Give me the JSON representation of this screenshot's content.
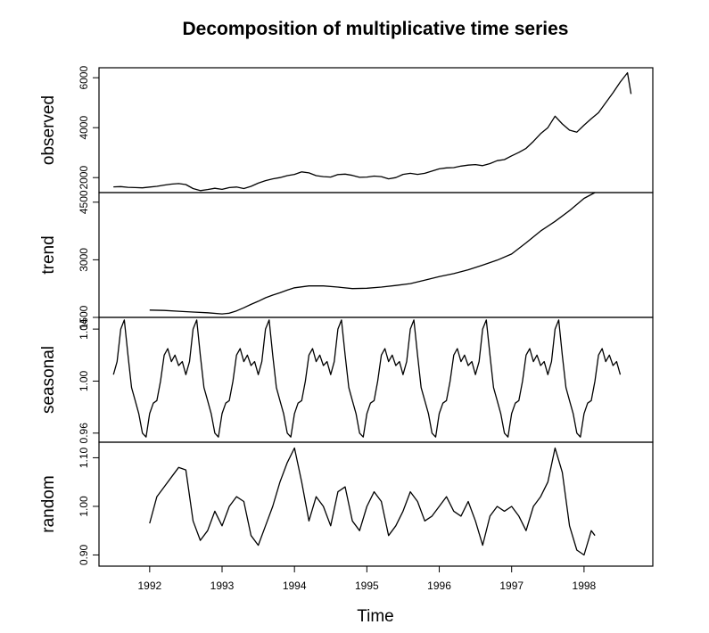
{
  "chart_data": {
    "type": "line",
    "title": "Decomposition of multiplicative time series",
    "xlabel": "Time",
    "xlim": [
      1991.3,
      1998.95
    ],
    "x_ticks": [
      "1992",
      "1993",
      "1994",
      "1995",
      "1996",
      "1997",
      "1998"
    ],
    "grid": false,
    "panels": [
      {
        "name": "observed",
        "ylabel": "observed",
        "ylim": [
          1400,
          6400
        ],
        "y_ticks": [
          "2000",
          "4000",
          "6000"
        ],
        "series": {
          "x": [
            1991.5,
            1991.6,
            1991.7,
            1991.8,
            1991.9,
            1992.0,
            1992.1,
            1992.2,
            1992.3,
            1992.4,
            1992.5,
            1992.6,
            1992.7,
            1992.8,
            1992.9,
            1993.0,
            1993.1,
            1993.2,
            1993.3,
            1993.4,
            1993.5,
            1993.6,
            1993.7,
            1993.8,
            1993.9,
            1994.0,
            1994.1,
            1994.2,
            1994.3,
            1994.4,
            1994.5,
            1994.6,
            1994.7,
            1994.8,
            1994.9,
            1995.0,
            1995.1,
            1995.2,
            1995.3,
            1995.4,
            1995.5,
            1995.6,
            1995.7,
            1995.8,
            1995.9,
            1996.0,
            1996.1,
            1996.2,
            1996.3,
            1996.4,
            1996.5,
            1996.6,
            1996.7,
            1996.8,
            1996.9,
            1997.0,
            1997.1,
            1997.2,
            1997.3,
            1997.4,
            1997.5,
            1997.6,
            1997.7,
            1997.8,
            1997.9,
            1998.0,
            1998.1,
            1998.2,
            1998.3,
            1998.4,
            1998.5,
            1998.6,
            1998.65
          ],
          "y": [
            1630,
            1640,
            1610,
            1600,
            1590,
            1620,
            1650,
            1700,
            1740,
            1760,
            1720,
            1560,
            1480,
            1520,
            1570,
            1530,
            1600,
            1620,
            1560,
            1650,
            1780,
            1880,
            1950,
            2000,
            2080,
            2130,
            2230,
            2190,
            2080,
            2040,
            2020,
            2120,
            2140,
            2090,
            2010,
            2020,
            2060,
            2040,
            1950,
            2000,
            2130,
            2170,
            2130,
            2170,
            2260,
            2350,
            2390,
            2400,
            2460,
            2500,
            2520,
            2480,
            2560,
            2680,
            2720,
            2870,
            3010,
            3170,
            3450,
            3760,
            4000,
            4460,
            4150,
            3900,
            3820,
            4100,
            4360,
            4600,
            5000,
            5400,
            5830,
            6200,
            5350
          ]
        }
      },
      {
        "name": "trend",
        "ylabel": "trend",
        "ylim": [
          1500,
          4750
        ],
        "y_ticks": [
          "1500",
          "3000",
          "4500"
        ],
        "series": {
          "x": [
            1992.0,
            1992.2,
            1992.4,
            1992.6,
            1992.8,
            1993.0,
            1993.1,
            1993.2,
            1993.3,
            1993.4,
            1993.5,
            1993.6,
            1993.7,
            1993.8,
            1993.9,
            1994.0,
            1994.2,
            1994.4,
            1994.6,
            1994.8,
            1995.0,
            1995.2,
            1995.4,
            1995.6,
            1995.8,
            1996.0,
            1996.2,
            1996.4,
            1996.6,
            1996.8,
            1997.0,
            1997.2,
            1997.4,
            1997.6,
            1997.8,
            1998.0,
            1998.15
          ],
          "y": [
            1690,
            1680,
            1660,
            1640,
            1620,
            1590,
            1610,
            1670,
            1750,
            1840,
            1920,
            2010,
            2080,
            2140,
            2210,
            2270,
            2320,
            2320,
            2290,
            2250,
            2260,
            2290,
            2330,
            2380,
            2470,
            2560,
            2640,
            2740,
            2860,
            2990,
            3150,
            3440,
            3750,
            4000,
            4280,
            4600,
            4750
          ]
        }
      },
      {
        "name": "seasonal",
        "ylabel": "seasonal",
        "ylim": [
          0.953,
          1.049
        ],
        "y_ticks": [
          "0.96",
          "1.00",
          "1.04"
        ],
        "series": {
          "x": [
            1991.5,
            1991.55,
            1991.6,
            1991.65,
            1991.7,
            1991.75,
            1991.8,
            1991.85,
            1991.9,
            1991.95,
            1992.0,
            1992.05,
            1992.1,
            1992.15,
            1992.2,
            1992.25,
            1992.3,
            1992.35,
            1992.4,
            1992.45,
            1992.5
          ],
          "y": [
            1.005,
            1.015,
            1.04,
            1.047,
            1.02,
            0.995,
            0.985,
            0.975,
            0.96,
            0.957,
            0.975,
            0.983,
            0.985,
            1.0,
            1.02,
            1.025,
            1.015,
            1.02,
            1.012,
            1.015,
            1.005
          ],
          "period": 1.0
        }
      },
      {
        "name": "random",
        "ylabel": "random",
        "ylim": [
          0.877,
          1.132
        ],
        "y_ticks": [
          "0.90",
          "1.00",
          "1.10"
        ],
        "series": {
          "x": [
            1992.0,
            1992.1,
            1992.2,
            1992.3,
            1992.4,
            1992.5,
            1992.6,
            1992.7,
            1992.8,
            1992.9,
            1993.0,
            1993.1,
            1993.2,
            1993.3,
            1993.4,
            1993.5,
            1993.6,
            1993.7,
            1993.8,
            1993.9,
            1994.0,
            1994.1,
            1994.2,
            1994.3,
            1994.4,
            1994.5,
            1994.6,
            1994.7,
            1994.8,
            1994.9,
            1995.0,
            1995.1,
            1995.2,
            1995.3,
            1995.4,
            1995.5,
            1995.6,
            1995.7,
            1995.8,
            1995.9,
            1996.0,
            1996.1,
            1996.2,
            1996.3,
            1996.4,
            1996.5,
            1996.6,
            1996.7,
            1996.8,
            1996.9,
            1997.0,
            1997.1,
            1997.2,
            1997.3,
            1997.4,
            1997.5,
            1997.6,
            1997.7,
            1997.8,
            1997.9,
            1998.0,
            1998.1,
            1998.15
          ],
          "y": [
            0.965,
            1.02,
            1.04,
            1.06,
            1.08,
            1.075,
            0.97,
            0.93,
            0.95,
            0.99,
            0.96,
            1.0,
            1.02,
            1.01,
            0.94,
            0.92,
            0.96,
            1.0,
            1.05,
            1.09,
            1.12,
            1.05,
            0.97,
            1.02,
            1.0,
            0.96,
            1.03,
            1.04,
            0.97,
            0.95,
            1.0,
            1.03,
            1.01,
            0.94,
            0.96,
            0.99,
            1.03,
            1.01,
            0.97,
            0.98,
            1.0,
            1.02,
            0.99,
            0.98,
            1.01,
            0.97,
            0.92,
            0.98,
            1.0,
            0.99,
            1.0,
            0.98,
            0.95,
            1.0,
            1.02,
            1.05,
            1.12,
            1.07,
            0.96,
            0.91,
            0.9,
            0.95,
            0.94
          ]
        }
      }
    ]
  }
}
